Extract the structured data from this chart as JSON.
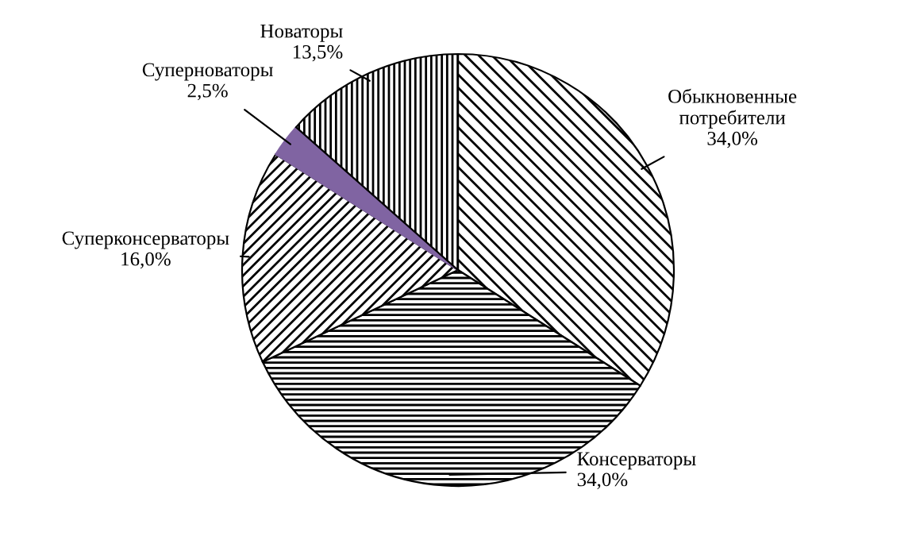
{
  "chart_data": {
    "type": "pie",
    "categories": [
      "Обыкновенные потребители",
      "Консерваторы",
      "Суперконсерваторы",
      "Суперноваторы",
      "Новаторы"
    ],
    "values": [
      34.0,
      34.0,
      16.0,
      2.5,
      13.5
    ],
    "value_labels": [
      "34,0%",
      "34,0%",
      "16,0%",
      "2,5%",
      "13,5%"
    ],
    "colors": [
      "#000000",
      "#000000",
      "#000000",
      "#8064a2",
      "#000000"
    ],
    "legend": false
  }
}
